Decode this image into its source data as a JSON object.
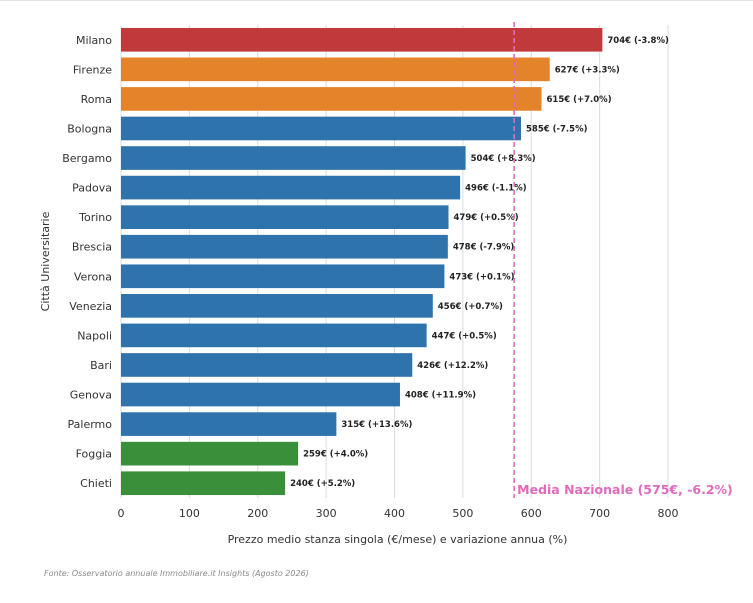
{
  "chart_data": {
    "type": "bar",
    "orientation": "horizontal",
    "ylabel": "Città Universitarie",
    "xlabel": "Prezzo medio stanza singola (€/mese) e variazione annua (%)",
    "xlim": [
      0,
      800
    ],
    "xticks": [
      0,
      100,
      200,
      300,
      400,
      500,
      600,
      700,
      800
    ],
    "grid": "vertical",
    "categories": [
      "Milano",
      "Firenze",
      "Roma",
      "Bologna",
      "Bergamo",
      "Padova",
      "Torino",
      "Brescia",
      "Verona",
      "Venezia",
      "Napoli",
      "Bari",
      "Genova",
      "Palermo",
      "Foggia",
      "Chieti"
    ],
    "values": [
      704,
      627,
      615,
      585,
      504,
      496,
      479,
      478,
      473,
      456,
      447,
      426,
      408,
      315,
      259,
      240
    ],
    "data_labels": [
      "704€ (-3.8%)",
      "627€ (+3.3%)",
      "615€ (+7.0%)",
      "585€ (-7.5%)",
      "504€ (+8.3%)",
      "496€ (-1.1%)",
      "479€ (+0.5%)",
      "478€ (-7.9%)",
      "473€ (+0.1%)",
      "456€ (+0.7%)",
      "447€ (+0.5%)",
      "426€ (+12.2%)",
      "408€ (+11.9%)",
      "315€ (+13.6%)",
      "259€ (+4.0%)",
      "240€ (+5.2%)"
    ],
    "bar_colors": [
      "#c0393b",
      "#e5832b",
      "#e5832b",
      "#2e73ab",
      "#2e73ab",
      "#2e73ab",
      "#2e73ab",
      "#2e73ab",
      "#2e73ab",
      "#2e73ab",
      "#2e73ab",
      "#2e73ab",
      "#2e73ab",
      "#2e73ab",
      "#3a8f3a",
      "#3a8f3a"
    ],
    "reference_line": {
      "value": 575,
      "label": "Media Nazionale (575€, -6.2%)",
      "style": "dashed",
      "color": "#e06bbe"
    }
  },
  "footer": {
    "source": "Fonte: Osservatorio annuale Immobiliare.it Insights (Agosto 2026)"
  }
}
